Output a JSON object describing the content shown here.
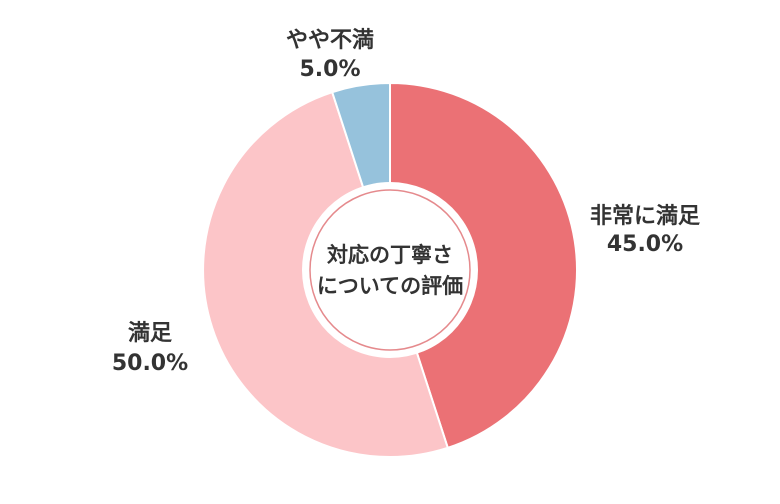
{
  "chart_data": {
    "type": "pie",
    "variant": "donut",
    "center_label": [
      "対応の丁寧さ",
      "についての評価"
    ],
    "slices": [
      {
        "label": "非常に満足",
        "value": 45.0,
        "value_label": "45.0%",
        "color": "#eb7175"
      },
      {
        "label": "満足",
        "value": 50.0,
        "value_label": "50.0%",
        "color": "#fcc5c8"
      },
      {
        "label": "やや不満",
        "value": 5.0,
        "value_label": "5.0%",
        "color": "#96c2dc"
      }
    ],
    "start_angle": "12 o'clock",
    "direction": "clockwise"
  }
}
